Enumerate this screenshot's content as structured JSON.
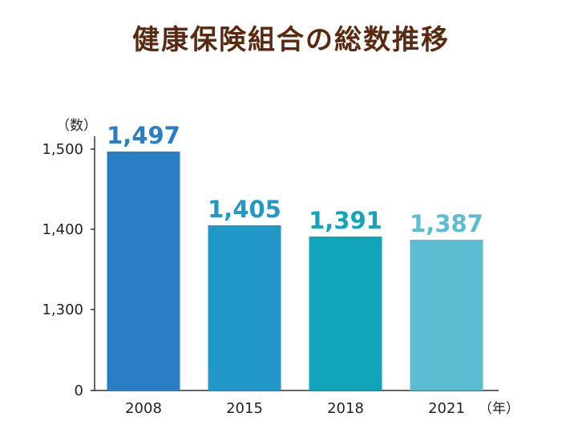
{
  "chart_data": {
    "type": "bar",
    "title": "健康保険組合の総数推移",
    "y_unit": "（数）",
    "x_unit": "（年）",
    "categories": [
      "2008",
      "2015",
      "2018",
      "2021"
    ],
    "values": [
      1497,
      1405,
      1391,
      1387
    ],
    "value_labels": [
      "1,497",
      "1,405",
      "1,391",
      "1,387"
    ],
    "bar_colors": [
      "#2a7fc4",
      "#2298c9",
      "#12a5b9",
      "#5cbdd2"
    ],
    "y_ticks": [
      "0",
      "1,300",
      "1,400",
      "1,500"
    ],
    "y_axis_break": true,
    "ylim": [
      1200,
      1500
    ],
    "grid": false,
    "legend": "none"
  }
}
